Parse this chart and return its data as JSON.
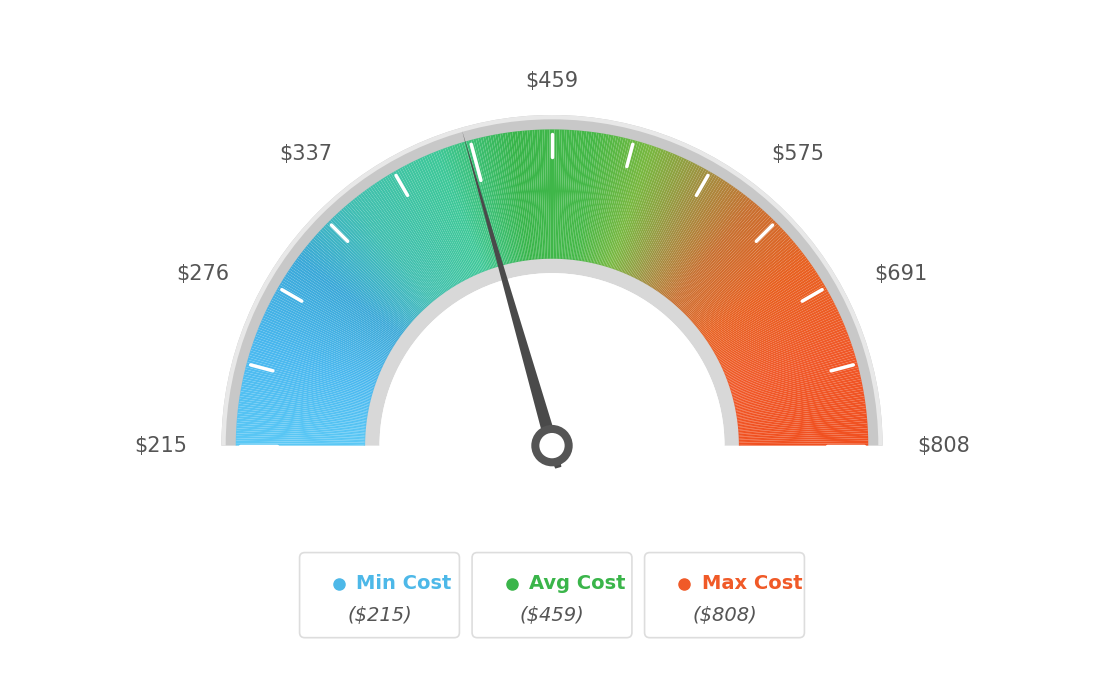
{
  "min_val": 215,
  "max_val": 808,
  "avg_val": 459,
  "labels": {
    "min": "$215",
    "val1": "$276",
    "val2": "$337",
    "avg": "$459",
    "val3": "$575",
    "val4": "$691",
    "max": "$808"
  },
  "legend": [
    {
      "label": "Min Cost",
      "value": "($215)",
      "color": "#4db8e8"
    },
    {
      "label": "Avg Cost",
      "value": "($459)",
      "color": "#3ab54a"
    },
    {
      "label": "Max Cost",
      "value": "($808)",
      "color": "#f05a28"
    }
  ],
  "needle_value": 459,
  "background_color": "#ffffff",
  "colors_list": [
    [
      0.0,
      "#5bc8f5"
    ],
    [
      0.1,
      "#4ab8ef"
    ],
    [
      0.2,
      "#3aa8d8"
    ],
    [
      0.28,
      "#40bfb0"
    ],
    [
      0.38,
      "#3ec898"
    ],
    [
      0.46,
      "#39b54a"
    ],
    [
      0.54,
      "#45b848"
    ],
    [
      0.6,
      "#78b840"
    ],
    [
      0.66,
      "#a09040"
    ],
    [
      0.72,
      "#c87030"
    ],
    [
      0.8,
      "#e86020"
    ],
    [
      0.9,
      "#f05828"
    ],
    [
      1.0,
      "#f05020"
    ]
  ],
  "tick_color": "#ffffff",
  "label_color": "#555555",
  "needle_color": "#4a4a4a",
  "outer_ring_color": "#c8c8c8",
  "inner_ring_color": "#d8d8d8",
  "label_fontsize": 15,
  "legend_label_fontsize": 14,
  "legend_value_fontsize": 14
}
